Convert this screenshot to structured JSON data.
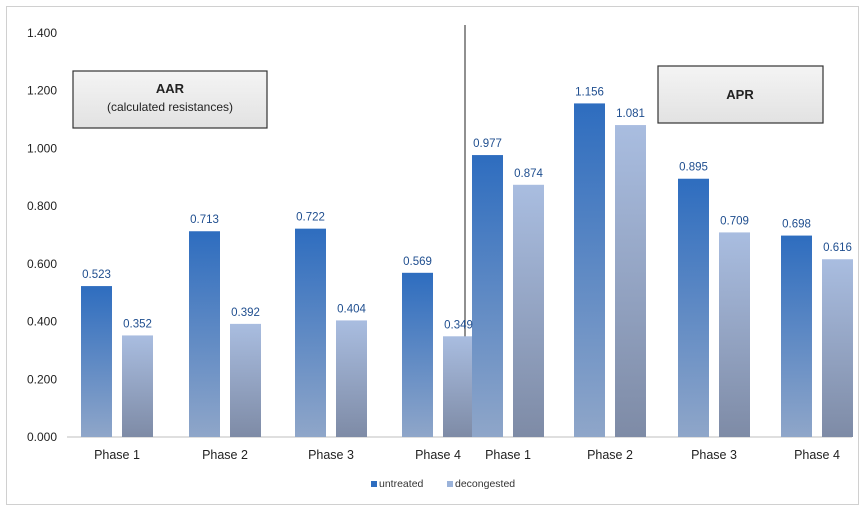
{
  "chart_data": {
    "type": "bar",
    "ylim": [
      0,
      1.4
    ],
    "yticks": [
      "0.000",
      "0.200",
      "0.400",
      "0.600",
      "0.800",
      "1.000",
      "1.200",
      "1.400"
    ],
    "grid": false,
    "legend_position": "bottom-center",
    "colors": {
      "untreated": "#2e6dbf",
      "decongested": "#9bb3da"
    },
    "panels": [
      {
        "title": "AAR",
        "subtitle": "(calculated resistances)",
        "categories": [
          "Phase 1",
          "Phase 2",
          "Phase 3",
          "Phase 4"
        ],
        "series": [
          {
            "name": "untreated",
            "values": [
              0.523,
              0.713,
              0.722,
              0.569
            ],
            "labels": [
              "0.523",
              "0.713",
              "0.722",
              "0.569"
            ]
          },
          {
            "name": "decongested",
            "values": [
              0.352,
              0.392,
              0.404,
              0.349
            ],
            "labels": [
              "0.352",
              "0.392",
              "0.404",
              "0.349"
            ]
          }
        ]
      },
      {
        "title": "APR",
        "subtitle": "",
        "categories": [
          "Phase 1",
          "Phase 2",
          "Phase 3",
          "Phase 4"
        ],
        "series": [
          {
            "name": "untreated",
            "values": [
              0.977,
              1.156,
              0.895,
              0.698
            ],
            "labels": [
              "0.977",
              "1.156",
              "0.895",
              "0.698"
            ]
          },
          {
            "name": "decongested",
            "values": [
              0.874,
              1.081,
              0.709,
              0.616
            ],
            "labels": [
              "0.874",
              "1.081",
              "0.709",
              "0.616"
            ]
          }
        ]
      }
    ]
  }
}
